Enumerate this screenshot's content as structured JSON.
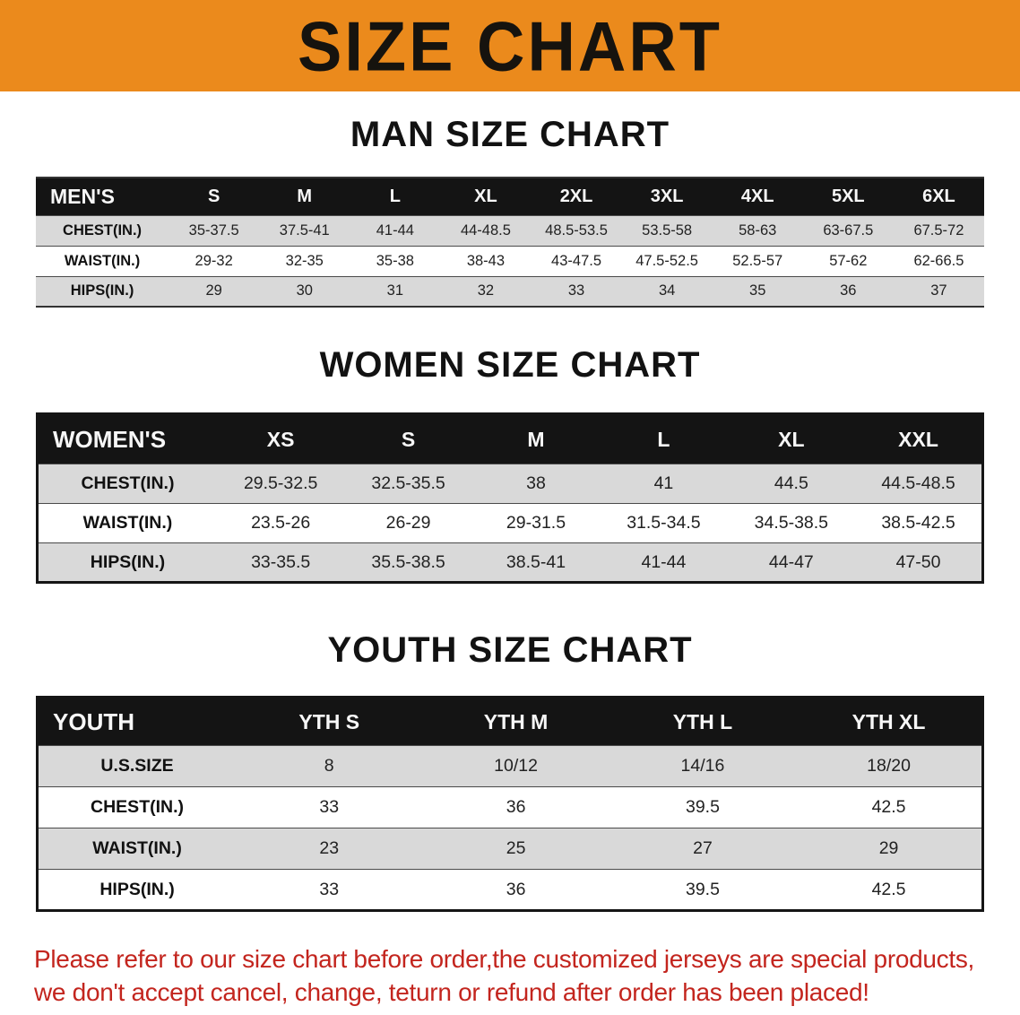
{
  "banner": {
    "title": "SIZE CHART",
    "bg_color": "#EB8A1C"
  },
  "sections": {
    "men": {
      "heading": "MAN SIZE CHART",
      "table": {
        "header": [
          "MEN'S",
          "S",
          "M",
          "L",
          "XL",
          "2XL",
          "3XL",
          "4XL",
          "5XL",
          "6XL"
        ],
        "rows": [
          {
            "label": "CHEST(IN.)",
            "values": [
              "35-37.5",
              "37.5-41",
              "41-44",
              "44-48.5",
              "48.5-53.5",
              "53.5-58",
              "58-63",
              "63-67.5",
              "67.5-72"
            ]
          },
          {
            "label": "WAIST(IN.)",
            "values": [
              "29-32",
              "32-35",
              "35-38",
              "38-43",
              "43-47.5",
              "47.5-52.5",
              "52.5-57",
              "57-62",
              "62-66.5"
            ]
          },
          {
            "label": "HIPS(IN.)",
            "values": [
              "29",
              "30",
              "31",
              "32",
              "33",
              "34",
              "35",
              "36",
              "37"
            ]
          }
        ]
      }
    },
    "women": {
      "heading": "WOMEN SIZE CHART",
      "table": {
        "header": [
          "WOMEN'S",
          "XS",
          "S",
          "M",
          "L",
          "XL",
          "XXL"
        ],
        "rows": [
          {
            "label": "CHEST(IN.)",
            "values": [
              "29.5-32.5",
              "32.5-35.5",
              "38",
              "41",
              "44.5",
              "44.5-48.5"
            ]
          },
          {
            "label": "WAIST(IN.)",
            "values": [
              "23.5-26",
              "26-29",
              "29-31.5",
              "31.5-34.5",
              "34.5-38.5",
              "38.5-42.5"
            ]
          },
          {
            "label": "HIPS(IN.)",
            "values": [
              "33-35.5",
              "35.5-38.5",
              "38.5-41",
              "41-44",
              "44-47",
              "47-50"
            ]
          }
        ]
      }
    },
    "youth": {
      "heading": "YOUTH SIZE CHART",
      "table": {
        "header": [
          "YOUTH",
          "YTH S",
          "YTH M",
          "YTH L",
          "YTH XL"
        ],
        "rows": [
          {
            "label": "U.S.SIZE",
            "values": [
              "8",
              "10/12",
              "14/16",
              "18/20"
            ]
          },
          {
            "label": "CHEST(IN.)",
            "values": [
              "33",
              "36",
              "39.5",
              "42.5"
            ]
          },
          {
            "label": "WAIST(IN.)",
            "values": [
              "23",
              "25",
              "27",
              "29"
            ]
          },
          {
            "label": "HIPS(IN.)",
            "values": [
              "33",
              "36",
              "39.5",
              "42.5"
            ]
          }
        ]
      }
    }
  },
  "disclaimer": {
    "color": "#C3251E",
    "lines": [
      "Please refer to our size chart before order,the customized jerseys are special products,",
      "we don't accept cancel, change, teturn or refund after order has been placed!"
    ]
  }
}
